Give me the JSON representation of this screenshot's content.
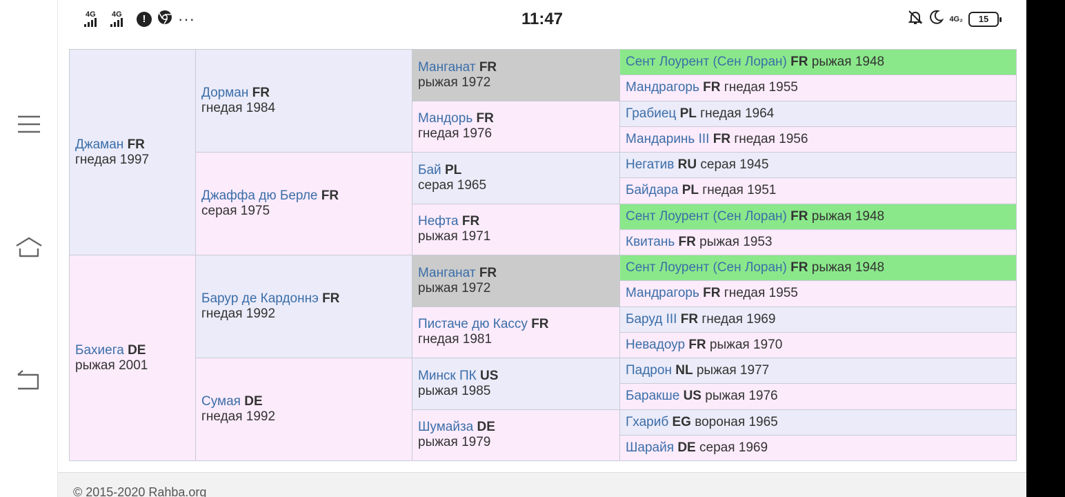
{
  "status": {
    "net1": "4G",
    "net2": "4G",
    "time": "11:47",
    "net_right": "4G₂",
    "battery": "15"
  },
  "pedigree": {
    "gen1": [
      {
        "name": "Джаман",
        "cc": "FR",
        "info": "гнедая 1997"
      },
      {
        "name": "Бахиега",
        "cc": "DE",
        "info": "рыжая 2001"
      }
    ],
    "gen2": [
      {
        "name": "Дорман",
        "cc": "FR",
        "info": "гнедая 1984"
      },
      {
        "name": "Джаффа дю Берле",
        "cc": "FR",
        "info": "серая 1975"
      },
      {
        "name": "Баруp де Кардоннэ",
        "cc": "FR",
        "info": "гнедая 1992"
      },
      {
        "name": "Сумая",
        "cc": "DE",
        "info": "гнедая 1992"
      }
    ],
    "gen3": [
      {
        "name": "Манганат",
        "cc": "FR",
        "info": "рыжая 1972"
      },
      {
        "name": "Мандорь",
        "cc": "FR",
        "info": "гнедая 1976"
      },
      {
        "name": "Бай",
        "cc": "PL",
        "info": "серая 1965"
      },
      {
        "name": "Нефта",
        "cc": "FR",
        "info": "рыжая 1971"
      },
      {
        "name": "Манганат",
        "cc": "FR",
        "info": "рыжая 1972"
      },
      {
        "name": "Пистаче дю Кассу",
        "cc": "FR",
        "info": "гнедая 1981"
      },
      {
        "name": "Минск ПК",
        "cc": "US",
        "info": "рыжая 1985"
      },
      {
        "name": "Шумайза",
        "cc": "DE",
        "info": "рыжая 1979"
      }
    ],
    "gen4": [
      {
        "name": "Сент Лоурент (Сен Лоран)",
        "cc": "FR",
        "info": "рыжая 1948"
      },
      {
        "name": "Мандрагорь",
        "cc": "FR",
        "info": "гнедая 1955"
      },
      {
        "name": "Грабиец",
        "cc": "PL",
        "info": "гнедая 1964"
      },
      {
        "name": "Мандаринь III",
        "cc": "FR",
        "info": "гнедая 1956"
      },
      {
        "name": "Негатив",
        "cc": "RU",
        "info": "серая 1945"
      },
      {
        "name": "Байдара",
        "cc": "PL",
        "info": "гнедая 1951"
      },
      {
        "name": "Сент Лоурент (Сен Лоран)",
        "cc": "FR",
        "info": "рыжая 1948"
      },
      {
        "name": "Квитань",
        "cc": "FR",
        "info": "рыжая 1953"
      },
      {
        "name": "Сент Лоурент (Сен Лоран)",
        "cc": "FR",
        "info": "рыжая 1948"
      },
      {
        "name": "Мандрагорь",
        "cc": "FR",
        "info": "гнедая 1955"
      },
      {
        "name": "Баруд III",
        "cc": "FR",
        "info": "гнедая 1969"
      },
      {
        "name": "Невадоур",
        "cc": "FR",
        "info": "рыжая 1970"
      },
      {
        "name": "Падрон",
        "cc": "NL",
        "info": "рыжая 1977"
      },
      {
        "name": "Баракше",
        "cc": "US",
        "info": "рыжая 1976"
      },
      {
        "name": "Гхариб",
        "cc": "EG",
        "info": "вороная 1965"
      },
      {
        "name": "Шарайя",
        "cc": "DE",
        "info": "серая 1969"
      }
    ]
  },
  "colors": {
    "lavender": "#ebebf9",
    "pink": "#fcebfb",
    "grey": "#cbcbcb",
    "green": "#8ae88a",
    "link": "#3b6ea8"
  },
  "footer": {
    "copyright": "© 2015-2020 Rahba.org"
  }
}
